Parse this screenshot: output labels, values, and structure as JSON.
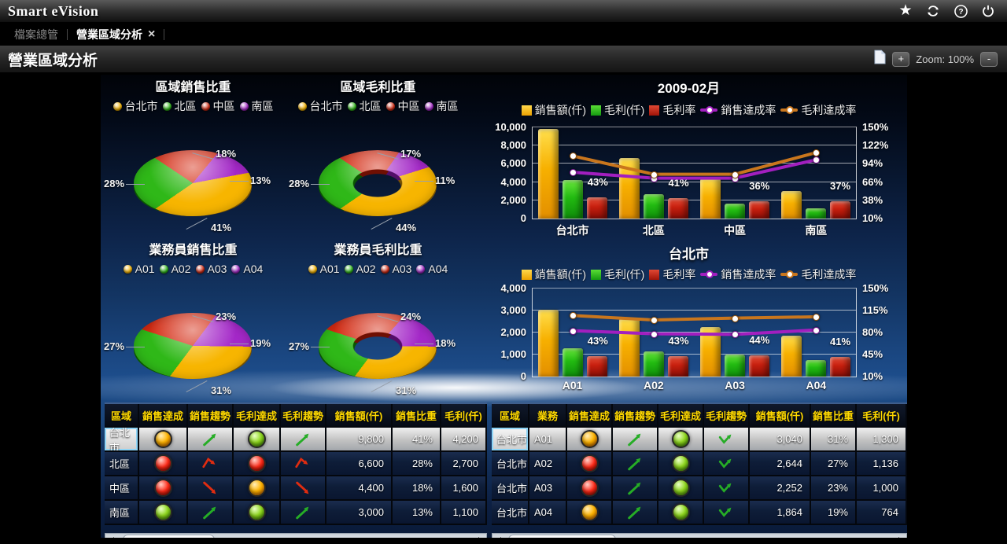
{
  "app": {
    "title": "Smart eVision"
  },
  "tabs": {
    "items": [
      {
        "label": "檔案總管",
        "active": false
      },
      {
        "label": "營業區域分析",
        "active": true
      }
    ]
  },
  "toolbar": {
    "title": "營業區域分析",
    "zoom_in": "+",
    "zoom_label": "Zoom: 100%",
    "zoom_out": "-"
  },
  "colors": {
    "series_yellow": "#f7b500",
    "series_green": "#2fb818",
    "series_red": "#d42a12",
    "series_purple": "#a428c8",
    "line_purple": "#a21fbf",
    "line_orange": "#c9761d",
    "header_text": "#ffd900"
  },
  "chart_data": [
    {
      "type": "pie",
      "title": "區域銷售比重",
      "legend": [
        "台北市",
        "北區",
        "中區",
        "南區"
      ],
      "colors": [
        "#f7b500",
        "#2fb818",
        "#d42a12",
        "#a428c8"
      ],
      "values": [
        41,
        28,
        18,
        13
      ],
      "start_angle": 320
    },
    {
      "type": "donut",
      "title": "區域毛利比重",
      "legend": [
        "台北市",
        "北區",
        "中區",
        "南區"
      ],
      "colors": [
        "#f7b500",
        "#2fb818",
        "#d42a12",
        "#a428c8"
      ],
      "values": [
        44,
        28,
        17,
        11
      ],
      "start_angle": 320
    },
    {
      "type": "pie",
      "title": "業務員銷售比重",
      "legend": [
        "A01",
        "A02",
        "A03",
        "A04"
      ],
      "colors": [
        "#f7b500",
        "#2fb818",
        "#d42a12",
        "#a428c8"
      ],
      "values": [
        31,
        27,
        23,
        19
      ],
      "start_angle": 300
    },
    {
      "type": "donut",
      "title": "業務員毛利比重",
      "legend": [
        "A01",
        "A02",
        "A03",
        "A04"
      ],
      "colors": [
        "#f7b500",
        "#2fb818",
        "#d42a12",
        "#a428c8"
      ],
      "values": [
        31,
        27,
        24,
        18
      ],
      "start_angle": 300
    },
    {
      "type": "combo",
      "title": "2009-02月",
      "categories": [
        "台北市",
        "北區",
        "中區",
        "南區"
      ],
      "left_ticks": [
        "0",
        "2,000",
        "4,000",
        "6,000",
        "8,000",
        "10,000"
      ],
      "right_ticks": [
        "10%",
        "38%",
        "66%",
        "94%",
        "122%",
        "150%"
      ],
      "left_max": 10000,
      "right_min": 10,
      "right_max": 150,
      "series": [
        {
          "name": "銷售額(仟)",
          "kind": "bar",
          "color": "yellow",
          "axis": "left",
          "values": [
            9800,
            6600,
            4400,
            3000
          ]
        },
        {
          "name": "毛利(仟)",
          "kind": "bar",
          "color": "green",
          "axis": "left",
          "values": [
            4200,
            2700,
            1600,
            1100
          ]
        },
        {
          "name": "毛利率",
          "kind": "bar",
          "color": "red",
          "axis": "right",
          "labels": true,
          "values": [
            43,
            41,
            36,
            37
          ]
        },
        {
          "name": "銷售達成率",
          "kind": "line",
          "color": "purple",
          "axis": "right",
          "values": [
            81,
            72,
            72,
            100
          ]
        },
        {
          "name": "毛利達成率",
          "kind": "line",
          "color": "orange",
          "axis": "right",
          "values": [
            106,
            78,
            78,
            111
          ]
        }
      ]
    },
    {
      "type": "combo",
      "title": "台北市",
      "categories": [
        "A01",
        "A02",
        "A03",
        "A04"
      ],
      "left_ticks": [
        "0",
        "1,000",
        "2,000",
        "3,000",
        "4,000"
      ],
      "right_ticks": [
        "10%",
        "45%",
        "80%",
        "115%",
        "150%"
      ],
      "left_max": 4000,
      "right_min": 10,
      "right_max": 150,
      "series": [
        {
          "name": "銷售額(仟)",
          "kind": "bar",
          "color": "yellow",
          "axis": "left",
          "values": [
            3040,
            2644,
            2252,
            1864
          ]
        },
        {
          "name": "毛利(仟)",
          "kind": "bar",
          "color": "green",
          "axis": "left",
          "values": [
            1300,
            1136,
            1000,
            764
          ]
        },
        {
          "name": "毛利率",
          "kind": "bar",
          "color": "red",
          "axis": "right",
          "labels": true,
          "values": [
            43,
            43,
            44,
            41
          ]
        },
        {
          "name": "銷售達成率",
          "kind": "line",
          "color": "purple",
          "axis": "right",
          "values": [
            83,
            78,
            77,
            84
          ]
        },
        {
          "name": "毛利達成率",
          "kind": "line",
          "color": "orange",
          "axis": "right",
          "values": [
            107,
            100,
            103,
            105
          ]
        }
      ]
    }
  ],
  "tables": {
    "left": {
      "headers": [
        "區域",
        "銷售達成",
        "銷售趨勢",
        "毛利達成",
        "毛利趨勢",
        "銷售額(仟)",
        "銷售比重",
        "毛利(仟)"
      ],
      "col_types": [
        "text",
        "light",
        "trend",
        "light",
        "trend",
        "num",
        "num",
        "num"
      ],
      "rows": [
        {
          "selected": true,
          "cells": [
            "台北市",
            "orange",
            "up",
            "green",
            "up",
            "9,800",
            "41%",
            "4,200"
          ]
        },
        {
          "selected": false,
          "cells": [
            "北區",
            "red",
            "peak",
            "red",
            "peak",
            "6,600",
            "28%",
            "2,700"
          ]
        },
        {
          "selected": false,
          "cells": [
            "中區",
            "red",
            "down",
            "orange",
            "down",
            "4,400",
            "18%",
            "1,600"
          ]
        },
        {
          "selected": false,
          "cells": [
            "南區",
            "green",
            "up",
            "green",
            "up",
            "3,000",
            "13%",
            "1,100"
          ]
        }
      ]
    },
    "right": {
      "headers": [
        "區域",
        "業務",
        "銷售達成",
        "銷售趨勢",
        "毛利達成",
        "毛利趨勢",
        "銷售額(仟)",
        "銷售比重",
        "毛利(仟)"
      ],
      "col_types": [
        "text",
        "text",
        "light",
        "trend",
        "light",
        "trend",
        "num",
        "num",
        "num"
      ],
      "rows": [
        {
          "selected": true,
          "cells": [
            "台北市",
            "A01",
            "orange",
            "up",
            "green",
            "valley",
            "3,040",
            "31%",
            "1,300"
          ]
        },
        {
          "selected": false,
          "cells": [
            "台北市",
            "A02",
            "red",
            "up",
            "green",
            "valley",
            "2,644",
            "27%",
            "1,136"
          ]
        },
        {
          "selected": false,
          "cells": [
            "台北市",
            "A03",
            "red",
            "up",
            "green",
            "valley",
            "2,252",
            "23%",
            "1,000"
          ]
        },
        {
          "selected": false,
          "cells": [
            "台北市",
            "A04",
            "orange",
            "up",
            "green",
            "valley",
            "1,864",
            "19%",
            "764"
          ]
        }
      ]
    }
  }
}
